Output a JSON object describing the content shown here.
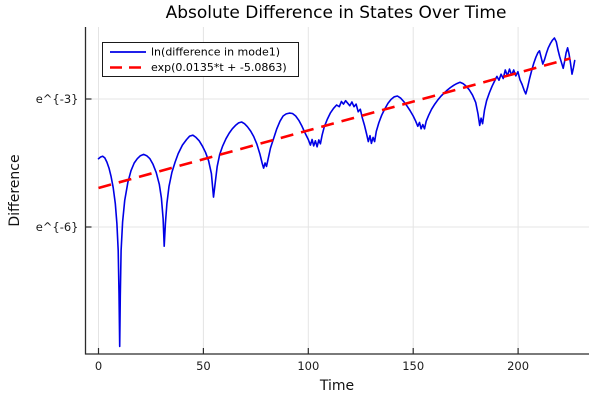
{
  "chart_data": {
    "type": "line",
    "title": "Absolute Difference in States Over Time",
    "xlabel": "Time",
    "ylabel": "Difference",
    "xlim": [
      -6.19,
      233.81
    ],
    "ylim": [
      -8.977,
      -1.313
    ],
    "x_ticks": [
      0,
      50,
      100,
      150,
      200
    ],
    "y_ticks": [
      {
        "value": -3,
        "label": "e^{-3}"
      },
      {
        "value": -6,
        "label": "e^{-6}"
      }
    ],
    "grid": true,
    "legend_position": "top-left",
    "axis_color": "#2b2b2b",
    "grid_color": "#e4e4e4",
    "series": [
      {
        "name": "ln(difference in mode1)",
        "color": "#0000e6",
        "style": "solid",
        "points": [
          [
            0,
            -4.4
          ],
          [
            1,
            -4.36
          ],
          [
            2,
            -4.34
          ],
          [
            3,
            -4.38
          ],
          [
            4,
            -4.48
          ],
          [
            5,
            -4.62
          ],
          [
            6,
            -4.82
          ],
          [
            7,
            -5.08
          ],
          [
            8,
            -5.45
          ],
          [
            8.8,
            -5.92
          ],
          [
            9.4,
            -6.55
          ],
          [
            9.8,
            -7.55
          ],
          [
            10.1,
            -8.8
          ],
          [
            10.4,
            -7.6
          ],
          [
            10.8,
            -6.55
          ],
          [
            11.5,
            -5.88
          ],
          [
            12.5,
            -5.38
          ],
          [
            14,
            -4.95
          ],
          [
            15.5,
            -4.68
          ],
          [
            17,
            -4.5
          ],
          [
            18.5,
            -4.4
          ],
          [
            20,
            -4.33
          ],
          [
            21.5,
            -4.3
          ],
          [
            23,
            -4.33
          ],
          [
            24.5,
            -4.4
          ],
          [
            26,
            -4.53
          ],
          [
            27.5,
            -4.72
          ],
          [
            29,
            -5.0
          ],
          [
            30,
            -5.32
          ],
          [
            30.8,
            -5.8
          ],
          [
            31.3,
            -6.45
          ],
          [
            31.9,
            -5.92
          ],
          [
            32.6,
            -5.45
          ],
          [
            33.6,
            -5.05
          ],
          [
            35,
            -4.72
          ],
          [
            36.5,
            -4.48
          ],
          [
            38,
            -4.28
          ],
          [
            40,
            -4.08
          ],
          [
            42,
            -3.95
          ],
          [
            43.5,
            -3.87
          ],
          [
            45,
            -3.85
          ],
          [
            46.5,
            -3.9
          ],
          [
            48,
            -3.98
          ],
          [
            49.5,
            -4.1
          ],
          [
            51,
            -4.25
          ],
          [
            52.5,
            -4.45
          ],
          [
            53.8,
            -4.75
          ],
          [
            54.8,
            -5.3
          ],
          [
            55.7,
            -4.95
          ],
          [
            56.6,
            -4.58
          ],
          [
            57.8,
            -4.3
          ],
          [
            59.2,
            -4.1
          ],
          [
            60.8,
            -3.93
          ],
          [
            62.3,
            -3.8
          ],
          [
            63.8,
            -3.7
          ],
          [
            65.3,
            -3.62
          ],
          [
            66.8,
            -3.56
          ],
          [
            68.2,
            -3.54
          ],
          [
            69.6,
            -3.58
          ],
          [
            71,
            -3.65
          ],
          [
            72.5,
            -3.75
          ],
          [
            74,
            -3.88
          ],
          [
            75.5,
            -4.06
          ],
          [
            77,
            -4.3
          ],
          [
            78,
            -4.5
          ],
          [
            78.7,
            -4.62
          ],
          [
            79.4,
            -4.5
          ],
          [
            80.1,
            -4.58
          ],
          [
            80.9,
            -4.4
          ],
          [
            82,
            -4.15
          ],
          [
            83.5,
            -3.92
          ],
          [
            85,
            -3.7
          ],
          [
            86.5,
            -3.52
          ],
          [
            88,
            -3.4
          ],
          [
            89.5,
            -3.35
          ],
          [
            91,
            -3.33
          ],
          [
            92.5,
            -3.34
          ],
          [
            94,
            -3.4
          ],
          [
            95.5,
            -3.5
          ],
          [
            97,
            -3.64
          ],
          [
            98.5,
            -3.8
          ],
          [
            100,
            -3.95
          ],
          [
            101,
            -4.08
          ],
          [
            101.8,
            -3.95
          ],
          [
            102.6,
            -4.1
          ],
          [
            103.4,
            -3.98
          ],
          [
            104.2,
            -4.12
          ],
          [
            105,
            -3.96
          ],
          [
            105.8,
            -4.05
          ],
          [
            106.6,
            -3.85
          ],
          [
            107.6,
            -3.66
          ],
          [
            109,
            -3.48
          ],
          [
            110.5,
            -3.33
          ],
          [
            112,
            -3.22
          ],
          [
            113.5,
            -3.14
          ],
          [
            114.8,
            -3.18
          ],
          [
            115.8,
            -3.06
          ],
          [
            116.8,
            -3.12
          ],
          [
            117.8,
            -3.04
          ],
          [
            118.8,
            -3.1
          ],
          [
            119.8,
            -3.16
          ],
          [
            120.8,
            -3.07
          ],
          [
            121.8,
            -3.18
          ],
          [
            122.8,
            -3.12
          ],
          [
            123.8,
            -3.3
          ],
          [
            124.8,
            -3.24
          ],
          [
            125.8,
            -3.45
          ],
          [
            126.8,
            -3.62
          ],
          [
            127.8,
            -3.82
          ],
          [
            128.6,
            -4.0
          ],
          [
            129.4,
            -3.86
          ],
          [
            130.1,
            -4.04
          ],
          [
            130.9,
            -3.9
          ],
          [
            131.6,
            -4.0
          ],
          [
            132.4,
            -3.76
          ],
          [
            133.6,
            -3.56
          ],
          [
            135,
            -3.38
          ],
          [
            136.5,
            -3.23
          ],
          [
            138,
            -3.1
          ],
          [
            139.5,
            -3.01
          ],
          [
            141,
            -2.95
          ],
          [
            142.5,
            -2.93
          ],
          [
            144,
            -2.98
          ],
          [
            145.5,
            -3.06
          ],
          [
            147,
            -3.16
          ],
          [
            148.5,
            -3.27
          ],
          [
            150,
            -3.4
          ],
          [
            151.2,
            -3.52
          ],
          [
            152.2,
            -3.64
          ],
          [
            153,
            -3.55
          ],
          [
            153.8,
            -3.7
          ],
          [
            154.6,
            -3.6
          ],
          [
            155.4,
            -3.7
          ],
          [
            156.2,
            -3.52
          ],
          [
            157.4,
            -3.38
          ],
          [
            158.8,
            -3.24
          ],
          [
            160.3,
            -3.12
          ],
          [
            161.8,
            -3.02
          ],
          [
            163.3,
            -2.93
          ],
          [
            164.8,
            -2.86
          ],
          [
            166.3,
            -2.79
          ],
          [
            167.8,
            -2.73
          ],
          [
            169.3,
            -2.68
          ],
          [
            170.8,
            -2.64
          ],
          [
            172.3,
            -2.61
          ],
          [
            173.8,
            -2.64
          ],
          [
            175.3,
            -2.7
          ],
          [
            176.8,
            -2.79
          ],
          [
            178.3,
            -2.91
          ],
          [
            179.8,
            -3.08
          ],
          [
            180.9,
            -3.35
          ],
          [
            181.7,
            -3.62
          ],
          [
            182.4,
            -3.45
          ],
          [
            183.1,
            -3.58
          ],
          [
            184,
            -3.26
          ],
          [
            185,
            -3.04
          ],
          [
            186.3,
            -2.86
          ],
          [
            187.6,
            -2.7
          ],
          [
            188.9,
            -2.57
          ],
          [
            189.9,
            -2.47
          ],
          [
            190.9,
            -2.56
          ],
          [
            191.9,
            -2.42
          ],
          [
            192.9,
            -2.52
          ],
          [
            193.9,
            -2.32
          ],
          [
            194.9,
            -2.46
          ],
          [
            195.9,
            -2.3
          ],
          [
            196.9,
            -2.44
          ],
          [
            197.9,
            -2.32
          ],
          [
            198.9,
            -2.46
          ],
          [
            199.9,
            -2.36
          ],
          [
            200.9,
            -2.55
          ],
          [
            201.9,
            -2.66
          ],
          [
            202.9,
            -2.8
          ],
          [
            203.7,
            -2.88
          ],
          [
            204.6,
            -2.72
          ],
          [
            205.5,
            -2.52
          ],
          [
            206.5,
            -2.33
          ],
          [
            207.5,
            -2.16
          ],
          [
            208.5,
            -2.02
          ],
          [
            209.4,
            -1.92
          ],
          [
            210.2,
            -1.87
          ],
          [
            211,
            -2.02
          ],
          [
            211.8,
            -2.18
          ],
          [
            212.6,
            -2.08
          ],
          [
            213.5,
            -1.93
          ],
          [
            214.4,
            -1.8
          ],
          [
            215.4,
            -1.7
          ],
          [
            216.4,
            -1.62
          ],
          [
            217.3,
            -1.57
          ],
          [
            218.2,
            -1.66
          ],
          [
            219,
            -1.84
          ],
          [
            219.8,
            -2.0
          ],
          [
            220.7,
            -2.15
          ],
          [
            221.5,
            -2.28
          ],
          [
            222.2,
            -2.12
          ],
          [
            222.9,
            -1.92
          ],
          [
            223.6,
            -1.8
          ],
          [
            224.3,
            -1.94
          ],
          [
            225,
            -2.16
          ],
          [
            225.7,
            -2.42
          ],
          [
            226.4,
            -2.26
          ],
          [
            227,
            -2.1
          ]
        ]
      },
      {
        "name": "exp(0.0135*t + -5.0863)",
        "color": "#ff0000",
        "style": "dashed",
        "slope": 0.0135,
        "intercept": -5.0863,
        "t_range": [
          0,
          225
        ]
      }
    ]
  }
}
